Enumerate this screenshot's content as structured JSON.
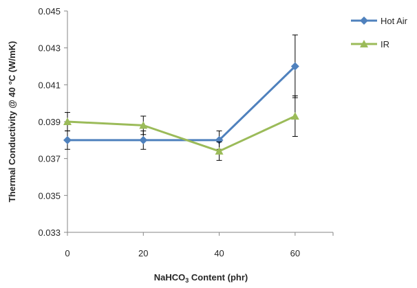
{
  "chart_data": {
    "type": "line",
    "title": "",
    "xlabel_main": "NaHCO",
    "xlabel_sub": "3",
    "xlabel_rest": " Content (phr)",
    "ylabel": "Thermal Conductivity @ 40 °C (W/mK)",
    "x": [
      0,
      20,
      40,
      60
    ],
    "xlim": [
      0,
      70
    ],
    "xticks": [
      "0",
      "20",
      "40",
      "60"
    ],
    "ylim": [
      0.033,
      0.045
    ],
    "yticks": [
      "0.033",
      "0.035",
      "0.037",
      "0.039",
      "0.041",
      "0.043",
      "0.045"
    ],
    "grid": false,
    "legend_position": "top-right",
    "series": [
      {
        "name": "Hot Air",
        "color": "#4f81bd",
        "marker": "diamond",
        "values": [
          0.038,
          0.038,
          0.038,
          0.042
        ],
        "errors": [
          0.0005,
          0.0005,
          0.0005,
          0.0017
        ]
      },
      {
        "name": "IR",
        "color": "#9bbb59",
        "marker": "triangle",
        "values": [
          0.039,
          0.0388,
          0.0374,
          0.0393
        ],
        "errors": [
          0.0005,
          0.0005,
          0.0005,
          0.0011
        ]
      }
    ]
  }
}
